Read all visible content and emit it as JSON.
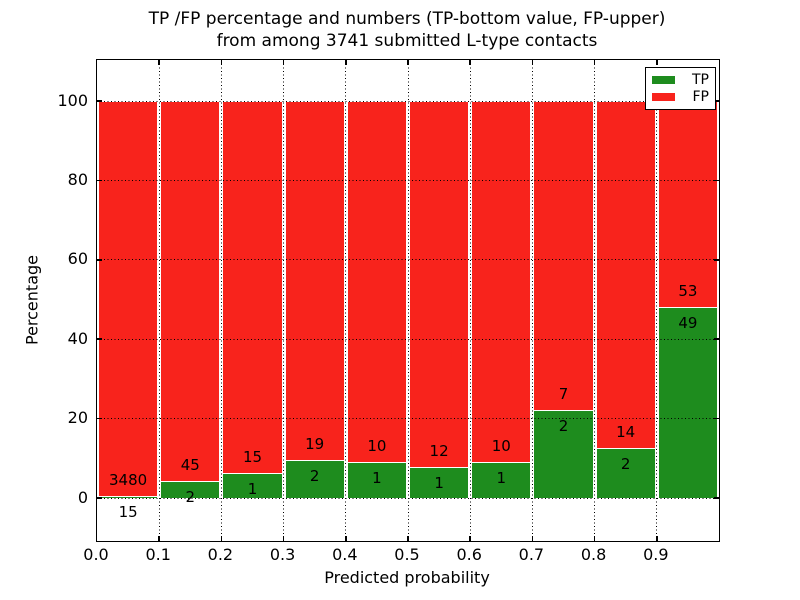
{
  "chart_data": {
    "type": "bar",
    "stacked": true,
    "normalization": "percent-of-bin-total",
    "title_lines": [
      "TP /FP percentage and numbers (TP-bottom value, FP-upper)",
      "from among 3741 submitted L-type contacts"
    ],
    "xlabel": "Predicted probability",
    "ylabel": "Percentage",
    "total_contacts": 3741,
    "xlim": [
      0.0,
      1.0
    ],
    "ylim": [
      -11,
      110.5
    ],
    "bin_width": 0.1,
    "x_tick_labels": [
      "0.0",
      "0.1",
      "0.2",
      "0.3",
      "0.4",
      "0.5",
      "0.6",
      "0.7",
      "0.8",
      "0.9"
    ],
    "y_ticks": [
      0,
      20,
      40,
      60,
      80,
      100
    ],
    "grid": "dotted",
    "legend_position": "upper right",
    "series": [
      {
        "name": "TP",
        "color": "#1e8c1e",
        "counts": [
          15,
          2,
          1,
          2,
          1,
          1,
          1,
          2,
          2,
          49
        ]
      },
      {
        "name": "FP",
        "color": "#f8231c",
        "counts": [
          3480,
          45,
          15,
          19,
          10,
          12,
          10,
          7,
          14,
          53
        ]
      }
    ],
    "tp_percent_by_bin": [
      0.43,
      4.26,
      6.25,
      9.52,
      9.09,
      7.69,
      9.09,
      22.22,
      12.5,
      48.04
    ]
  }
}
